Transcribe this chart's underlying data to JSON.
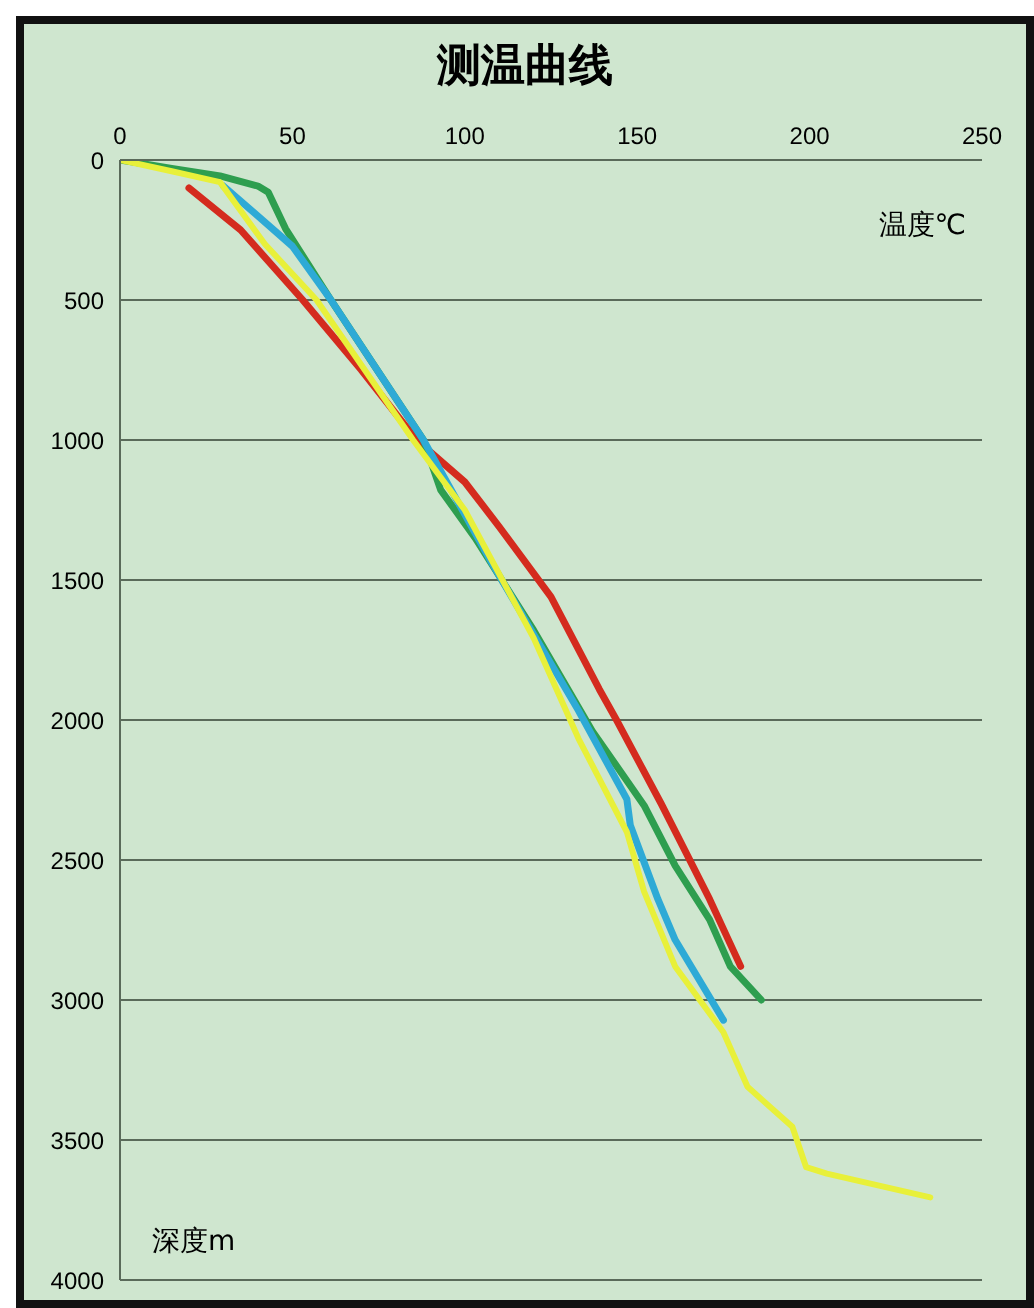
{
  "chart_data": {
    "type": "line",
    "title": "测温曲线",
    "xlabel": "温度℃",
    "ylabel": "深度m",
    "xlim": [
      0,
      250
    ],
    "xticks": [
      0,
      50,
      100,
      150,
      200,
      250
    ],
    "ylim": [
      4000,
      0
    ],
    "yticks": [
      0,
      500,
      1000,
      1500,
      2000,
      2500,
      3000,
      3500,
      4000
    ],
    "grid": "y",
    "marker": "none",
    "line_style": "solid",
    "series": [
      {
        "color": "#d42b1e",
        "x": [
          20,
          35,
          53,
          70,
          86,
          100,
          110,
          125,
          139,
          144,
          157,
          171,
          180
        ],
        "values": [
          100,
          250,
          500,
          750,
          1000,
          1150,
          1310,
          1560,
          1890,
          2000,
          2300,
          2640,
          2880
        ]
      },
      {
        "color": "#2e9e4f",
        "x": [
          0,
          15,
          29,
          40,
          43,
          48,
          61,
          88,
          93,
          103,
          120,
          137,
          152,
          161,
          171,
          177,
          186
        ],
        "values": [
          0,
          30,
          57,
          93,
          115,
          245,
          497,
          1000,
          1178,
          1350,
          1680,
          2040,
          2305,
          2520,
          2713,
          2880,
          3000
        ]
      },
      {
        "color": "#2eaad6",
        "x": [
          30,
          50,
          61,
          88,
          108,
          133,
          147,
          148,
          156,
          161,
          175
        ],
        "values": [
          93,
          308,
          497,
          1000,
          1443,
          1967,
          2283,
          2376,
          2640,
          2785,
          3072
        ]
      },
      {
        "color": "#e8f03a",
        "x": [
          0,
          15,
          29,
          42,
          57,
          85,
          100,
          120,
          133,
          147,
          152,
          161,
          175,
          182,
          195,
          199,
          205,
          235
        ],
        "values": [
          0,
          40,
          79,
          300,
          500,
          1000,
          1250,
          1708,
          2067,
          2400,
          2613,
          2880,
          3115,
          3310,
          3453,
          3597,
          3620,
          3705
        ]
      }
    ]
  }
}
